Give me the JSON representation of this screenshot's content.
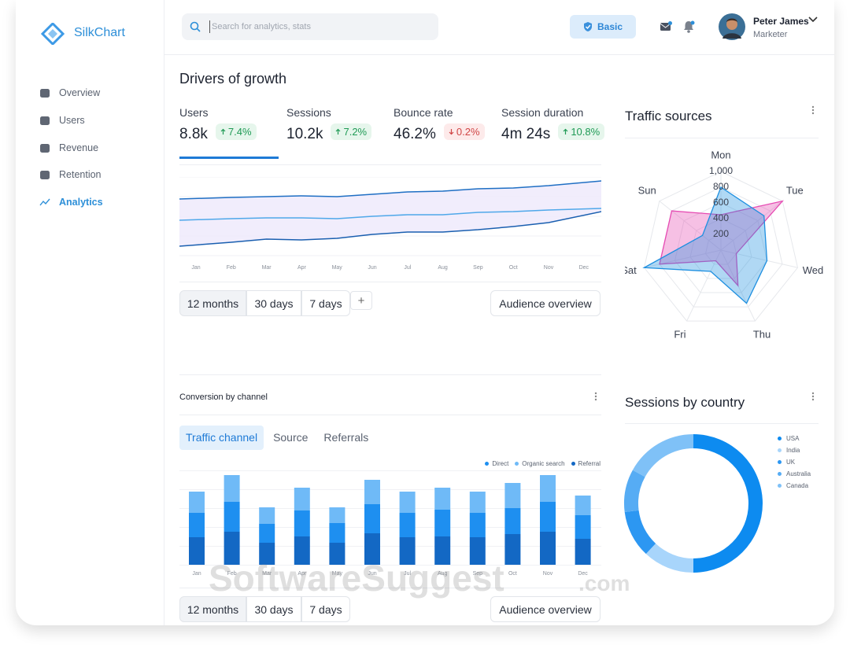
{
  "sidebar": {
    "brand": "SilkChart",
    "nav": [
      "Overview",
      "Users",
      "Revenue",
      "Retention",
      "Analytics"
    ],
    "active": 4
  },
  "header": {
    "search_placeholder": "Search for analytics, stats",
    "plan": "Basic",
    "user": {
      "name": "Peter James",
      "role": "Marketer"
    }
  },
  "growth": {
    "title": "Drivers of growth",
    "kpis": [
      {
        "label": "Users",
        "value": "8.8k",
        "change": "7.4%",
        "trend": "up"
      },
      {
        "label": "Sessions",
        "value": "10.2k",
        "change": "7.2%",
        "trend": "up"
      },
      {
        "label": "Bounce rate",
        "value": "46.2%",
        "change": "0.2%",
        "trend": "down"
      },
      {
        "label": "Session duration",
        "value": "4m 24s",
        "change": "10.8%",
        "trend": "up"
      }
    ],
    "active_kpi": 0,
    "ranges": [
      "12 months",
      "30 days",
      "7 days"
    ],
    "active_range": 0,
    "add": "+",
    "action": "Audience overview"
  },
  "traffic_sources": {
    "title": "Traffic sources"
  },
  "conversion": {
    "title": "Conversion by channel",
    "tabs": [
      "Traffic channel",
      "Source",
      "Referrals"
    ],
    "active_tab": 0,
    "ranges": [
      "12 months",
      "30 days",
      "7 days"
    ],
    "active_range": 0,
    "action": "Audience overview"
  },
  "sessions_by_country": {
    "title": "Sessions by country"
  },
  "watermark": [
    "SoftwareSuggest",
    ".com"
  ],
  "chart_data": [
    {
      "type": "line",
      "categories": [
        "Jan",
        "Feb",
        "Mar",
        "Apr",
        "May",
        "Jun",
        "Jul",
        "Aug",
        "Sep",
        "Oct",
        "Nov",
        "Dec"
      ],
      "ylim": [
        0,
        100
      ],
      "band": true,
      "series": [
        {
          "color": "#1f6fc4",
          "values": [
            72,
            74,
            75,
            76,
            75,
            78,
            81,
            82,
            85,
            86,
            89,
            95
          ]
        },
        {
          "color": "#4fa8ea",
          "values": [
            45,
            47,
            48,
            48,
            47,
            50,
            52,
            52,
            55,
            56,
            58,
            60
          ]
        },
        {
          "color": "#1a5fb0",
          "values": [
            12,
            17,
            21,
            20,
            22,
            27,
            30,
            30,
            33,
            37,
            42,
            56
          ]
        }
      ]
    },
    {
      "type": "radar",
      "categories": [
        "Mon",
        "Tue",
        "Wed",
        "Thu",
        "Fri",
        "Sat",
        "Sun"
      ],
      "rlim": [
        0,
        1000
      ],
      "rticks": [
        200,
        400,
        600,
        800,
        {
          "value": 1000,
          "label": "1,000"
        }
      ],
      "series": [
        {
          "color": "#e64bb3",
          "values": [
            450,
            1000,
            200,
            500,
            150,
            800,
            800
          ]
        },
        {
          "color": "#1d8fe0",
          "values": [
            800,
            700,
            600,
            750,
            300,
            1000,
            300
          ]
        }
      ]
    },
    {
      "type": "bar",
      "stacked": true,
      "categories": [
        "Jan",
        "Feb",
        "Mar",
        "Apr",
        "May",
        "Jun",
        "Jul",
        "Aug",
        "Sep",
        "Oct",
        "Nov",
        "Dec"
      ],
      "ylim": [
        0,
        120
      ],
      "grid": true,
      "stack_order": [
        2,
        0,
        1
      ],
      "legend": "top-right",
      "series": [
        {
          "name": "Direct",
          "color": "#1e8ff0",
          "values": [
            31,
            38,
            24,
            33,
            25,
            37,
            31,
            34,
            31,
            33,
            38,
            30
          ]
        },
        {
          "name": "Organic search",
          "color": "#6fbaf7",
          "values": [
            27,
            34,
            21,
            29,
            20,
            31,
            27,
            28,
            27,
            32,
            34,
            25
          ]
        },
        {
          "name": "Referral",
          "color": "#1368c4",
          "values": [
            35,
            42,
            28,
            36,
            28,
            40,
            35,
            36,
            35,
            39,
            42,
            33
          ]
        }
      ]
    },
    {
      "type": "pie",
      "donut": true,
      "categories": [
        "USA",
        "India",
        "UK",
        "Australia",
        "Canada"
      ],
      "values": [
        50,
        12,
        11,
        10,
        17
      ],
      "colors": [
        "#0d8bf0",
        "#a8d5fb",
        "#2c97f2",
        "#56acf4",
        "#7fc1f7"
      ],
      "legend": "right"
    }
  ]
}
